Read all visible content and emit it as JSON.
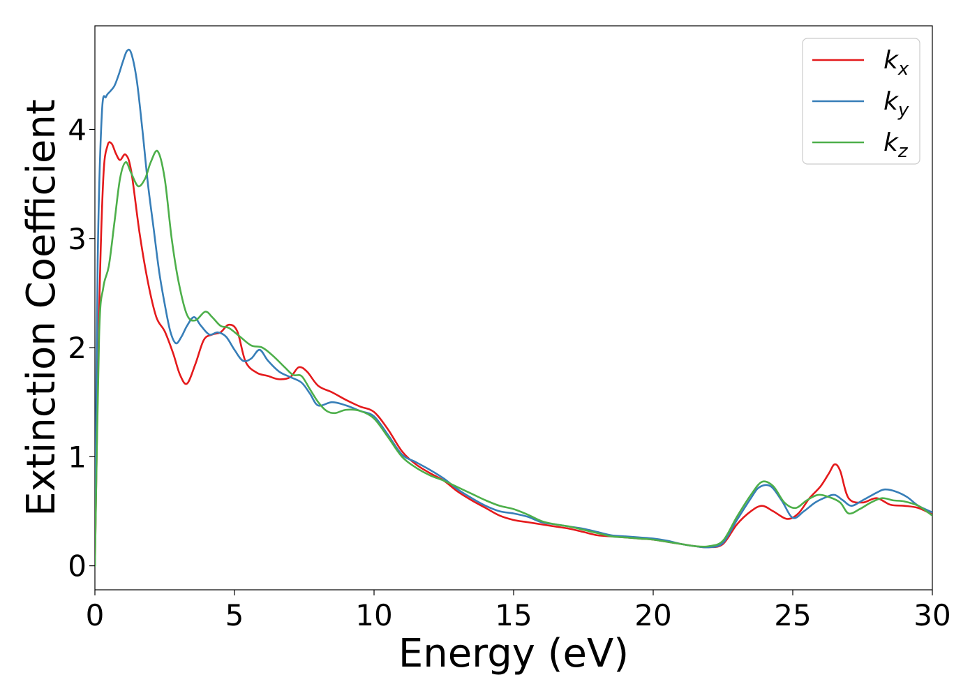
{
  "chart_data": {
    "type": "line",
    "title": "",
    "xlabel": "Energy (eV)",
    "ylabel": "Extinction Coefficient",
    "xlim": [
      0,
      30
    ],
    "ylim": [
      -0.22,
      4.95
    ],
    "xticks": [
      0,
      5,
      10,
      15,
      20,
      25,
      30
    ],
    "xtick_labels": [
      "0",
      "5",
      "10",
      "15",
      "20",
      "25",
      "30"
    ],
    "yticks": [
      0,
      1,
      2,
      3,
      4
    ],
    "ytick_labels": [
      "0",
      "1",
      "2",
      "3",
      "4"
    ],
    "grid": false,
    "legend_position": "top-right",
    "series": [
      {
        "name": "k_x",
        "label_main": "k",
        "label_sub": "x",
        "color": "#e41a1c",
        "x": [
          0,
          0.15,
          0.3,
          0.45,
          0.6,
          0.75,
          0.9,
          1.1,
          1.3,
          1.6,
          1.9,
          2.2,
          2.5,
          2.8,
          3.05,
          3.3,
          3.6,
          3.9,
          4.2,
          4.5,
          4.8,
          5.1,
          5.4,
          5.8,
          6.2,
          6.6,
          7.0,
          7.3,
          7.6,
          8.0,
          8.5,
          9.0,
          9.5,
          10.0,
          10.5,
          11.0,
          11.5,
          12.0,
          12.5,
          13.0,
          13.5,
          14.0,
          14.5,
          15.0,
          15.5,
          16.0,
          16.5,
          17.0,
          17.5,
          18.0,
          18.5,
          19.0,
          19.5,
          20.0,
          20.5,
          21.0,
          21.5,
          22.0,
          22.5,
          23.0,
          23.5,
          23.9,
          24.3,
          24.8,
          25.2,
          25.6,
          26.0,
          26.3,
          26.5,
          26.7,
          27.0,
          27.5,
          28.0,
          28.5,
          29.0,
          29.5,
          30.0
        ],
        "y": [
          0.0,
          2.3,
          3.55,
          3.85,
          3.87,
          3.78,
          3.72,
          3.77,
          3.62,
          3.05,
          2.6,
          2.28,
          2.15,
          1.95,
          1.75,
          1.67,
          1.85,
          2.07,
          2.12,
          2.14,
          2.21,
          2.15,
          1.87,
          1.77,
          1.74,
          1.71,
          1.73,
          1.82,
          1.78,
          1.65,
          1.59,
          1.52,
          1.46,
          1.41,
          1.25,
          1.05,
          0.93,
          0.85,
          0.78,
          0.68,
          0.6,
          0.53,
          0.46,
          0.42,
          0.4,
          0.38,
          0.36,
          0.34,
          0.31,
          0.28,
          0.27,
          0.26,
          0.25,
          0.24,
          0.22,
          0.2,
          0.18,
          0.17,
          0.2,
          0.38,
          0.5,
          0.55,
          0.5,
          0.43,
          0.48,
          0.62,
          0.73,
          0.85,
          0.93,
          0.87,
          0.62,
          0.58,
          0.62,
          0.56,
          0.55,
          0.53,
          0.47
        ]
      },
      {
        "name": "k_y",
        "label_main": "k",
        "label_sub": "y",
        "color": "#377eb8",
        "x": [
          0,
          0.1,
          0.25,
          0.4,
          0.55,
          0.7,
          0.85,
          1.0,
          1.15,
          1.3,
          1.5,
          1.7,
          1.9,
          2.1,
          2.3,
          2.5,
          2.7,
          2.9,
          3.1,
          3.3,
          3.55,
          3.8,
          4.1,
          4.4,
          4.7,
          5.0,
          5.3,
          5.6,
          5.9,
          6.2,
          6.6,
          7.0,
          7.4,
          7.7,
          8.0,
          8.5,
          9.0,
          9.5,
          10.0,
          10.5,
          11.0,
          11.5,
          12.0,
          12.5,
          13.0,
          13.5,
          14.0,
          14.5,
          15.0,
          15.5,
          16.0,
          16.5,
          17.0,
          17.5,
          18.0,
          18.5,
          19.0,
          19.5,
          20.0,
          20.5,
          21.0,
          21.5,
          22.0,
          22.5,
          23.0,
          23.5,
          23.8,
          24.2,
          24.6,
          25.0,
          25.4,
          25.8,
          26.2,
          26.5,
          26.8,
          27.1,
          27.5,
          28.0,
          28.3,
          28.7,
          29.1,
          29.5,
          30.0
        ],
        "y": [
          0.0,
          2.8,
          4.15,
          4.3,
          4.35,
          4.4,
          4.5,
          4.62,
          4.72,
          4.7,
          4.45,
          4.0,
          3.5,
          3.1,
          2.7,
          2.4,
          2.15,
          2.04,
          2.1,
          2.2,
          2.28,
          2.2,
          2.12,
          2.14,
          2.1,
          1.98,
          1.88,
          1.9,
          1.98,
          1.88,
          1.78,
          1.73,
          1.68,
          1.58,
          1.47,
          1.5,
          1.47,
          1.42,
          1.37,
          1.2,
          1.02,
          0.95,
          0.88,
          0.8,
          0.7,
          0.62,
          0.55,
          0.5,
          0.48,
          0.45,
          0.4,
          0.38,
          0.36,
          0.34,
          0.31,
          0.28,
          0.27,
          0.26,
          0.25,
          0.23,
          0.2,
          0.18,
          0.17,
          0.21,
          0.42,
          0.62,
          0.72,
          0.73,
          0.6,
          0.44,
          0.5,
          0.58,
          0.63,
          0.65,
          0.6,
          0.55,
          0.6,
          0.67,
          0.7,
          0.68,
          0.63,
          0.55,
          0.49
        ]
      },
      {
        "name": "k_z",
        "label_main": "k",
        "label_sub": "z",
        "color": "#4daf4a",
        "x": [
          0,
          0.15,
          0.3,
          0.5,
          0.7,
          0.9,
          1.1,
          1.3,
          1.55,
          1.8,
          2.0,
          2.25,
          2.5,
          2.75,
          3.0,
          3.3,
          3.6,
          3.95,
          4.2,
          4.5,
          4.8,
          5.2,
          5.6,
          6.0,
          6.4,
          6.8,
          7.1,
          7.4,
          7.7,
          8.0,
          8.3,
          8.6,
          9.0,
          9.5,
          10.0,
          10.5,
          11.0,
          11.5,
          12.0,
          12.5,
          13.0,
          13.5,
          14.0,
          14.5,
          15.0,
          15.5,
          16.0,
          16.5,
          17.0,
          17.5,
          18.0,
          18.5,
          19.0,
          19.5,
          20.0,
          20.5,
          21.0,
          21.5,
          22.0,
          22.5,
          23.0,
          23.5,
          23.9,
          24.3,
          24.7,
          25.1,
          25.5,
          25.9,
          26.3,
          26.7,
          27.0,
          27.4,
          27.8,
          28.2,
          28.6,
          29.0,
          29.5,
          30.0
        ],
        "y": [
          0.0,
          2.1,
          2.55,
          2.75,
          3.15,
          3.55,
          3.7,
          3.6,
          3.48,
          3.55,
          3.7,
          3.8,
          3.55,
          3.0,
          2.6,
          2.3,
          2.25,
          2.33,
          2.28,
          2.2,
          2.18,
          2.1,
          2.02,
          2.0,
          1.92,
          1.82,
          1.75,
          1.74,
          1.62,
          1.5,
          1.42,
          1.4,
          1.43,
          1.42,
          1.35,
          1.18,
          1.0,
          0.9,
          0.83,
          0.78,
          0.72,
          0.66,
          0.6,
          0.55,
          0.52,
          0.47,
          0.41,
          0.38,
          0.36,
          0.33,
          0.3,
          0.27,
          0.26,
          0.25,
          0.24,
          0.22,
          0.2,
          0.18,
          0.18,
          0.23,
          0.45,
          0.65,
          0.77,
          0.73,
          0.58,
          0.53,
          0.6,
          0.65,
          0.63,
          0.58,
          0.48,
          0.52,
          0.58,
          0.62,
          0.6,
          0.59,
          0.55,
          0.46
        ]
      }
    ]
  }
}
